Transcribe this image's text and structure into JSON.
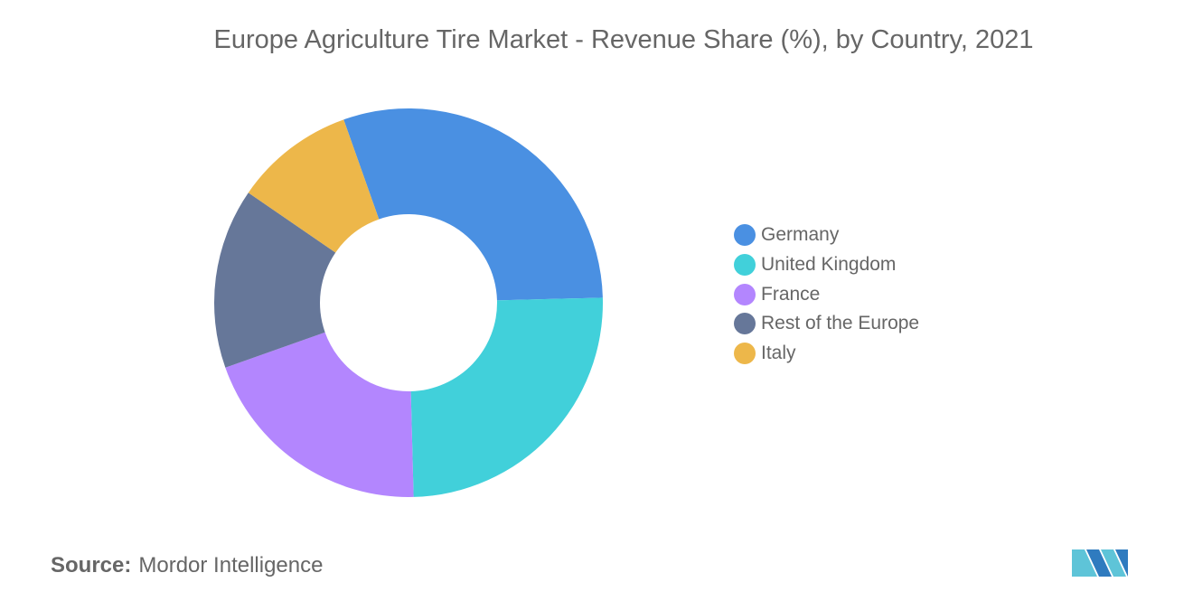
{
  "title": "Europe Agriculture Tire Market - Revenue Share (%), by Country, 2021",
  "source": {
    "label": "Source:",
    "value": "Mordor Intelligence"
  },
  "logo": {
    "icon": "mordor-intelligence-logo-icon",
    "colors": [
      "#5ec4d8",
      "#2f7bbf"
    ]
  },
  "chart_data": {
    "type": "pie",
    "donut": true,
    "categories": [
      "Germany",
      "United Kingdom",
      "France",
      "Rest of the Europe",
      "Italy"
    ],
    "values": [
      30,
      25,
      20,
      15,
      10
    ],
    "colors": [
      "#4a90e2",
      "#41d0da",
      "#b386fe",
      "#667799",
      "#edb74a"
    ],
    "legend_position": "right",
    "title": "Europe Agriculture Tire Market - Revenue Share (%), by Country, 2021"
  }
}
